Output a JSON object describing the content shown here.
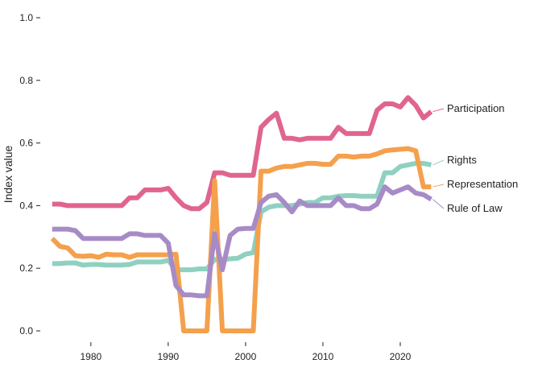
{
  "chart_data": {
    "type": "line",
    "title": "",
    "xlabel": "",
    "ylabel": "Index value",
    "xlim": [
      1974.5,
      2025
    ],
    "ylim": [
      0,
      1.0
    ],
    "x_ticks": [
      1980,
      1990,
      2000,
      2010,
      2020
    ],
    "x_tick_labels": [
      "1980",
      "1990",
      "2000",
      "2010",
      "2020"
    ],
    "y_ticks": [
      0,
      0.2,
      0.4,
      0.6,
      0.8,
      1.0
    ],
    "y_tick_labels": [
      "0.0",
      "0.2",
      "0.4",
      "0.6",
      "0.8",
      "1.0"
    ],
    "grid": false,
    "legend": "inline-right",
    "x": [
      1975,
      1976,
      1977,
      1978,
      1979,
      1980,
      1981,
      1982,
      1983,
      1984,
      1985,
      1986,
      1987,
      1988,
      1989,
      1990,
      1991,
      1992,
      1993,
      1994,
      1995,
      1996,
      1997,
      1998,
      1999,
      2000,
      2001,
      2002,
      2003,
      2004,
      2005,
      2006,
      2007,
      2008,
      2009,
      2010,
      2011,
      2012,
      2013,
      2014,
      2015,
      2016,
      2017,
      2018,
      2019,
      2020,
      2021,
      2022,
      2023,
      2024
    ],
    "series": [
      {
        "name": "Participation",
        "color": "#e0658c",
        "values": [
          0.405,
          0.405,
          0.4,
          0.4,
          0.4,
          0.4,
          0.4,
          0.4,
          0.4,
          0.4,
          0.425,
          0.425,
          0.45,
          0.45,
          0.45,
          0.455,
          0.425,
          0.4,
          0.39,
          0.39,
          0.41,
          0.505,
          0.505,
          0.497,
          0.497,
          0.497,
          0.497,
          0.65,
          0.675,
          0.695,
          0.615,
          0.615,
          0.61,
          0.615,
          0.615,
          0.615,
          0.615,
          0.65,
          0.63,
          0.63,
          0.63,
          0.63,
          0.705,
          0.725,
          0.725,
          0.715,
          0.745,
          0.72,
          0.68,
          0.7
        ]
      },
      {
        "name": "Rights",
        "color": "#8fd0c1",
        "values": [
          0.215,
          0.215,
          0.217,
          0.217,
          0.21,
          0.212,
          0.212,
          0.21,
          0.21,
          0.21,
          0.212,
          0.22,
          0.22,
          0.22,
          0.22,
          0.225,
          0.195,
          0.195,
          0.195,
          0.198,
          0.198,
          0.228,
          0.228,
          0.23,
          0.232,
          0.245,
          0.25,
          0.38,
          0.395,
          0.4,
          0.4,
          0.4,
          0.405,
          0.41,
          0.41,
          0.425,
          0.425,
          0.43,
          0.432,
          0.432,
          0.43,
          0.43,
          0.43,
          0.505,
          0.505,
          0.525,
          0.53,
          0.535,
          0.535,
          0.53
        ]
      },
      {
        "name": "Representation",
        "color": "#f4a04c",
        "values": [
          0.295,
          0.27,
          0.265,
          0.24,
          0.238,
          0.24,
          0.235,
          0.245,
          0.243,
          0.243,
          0.235,
          0.243,
          0.243,
          0.243,
          0.243,
          0.243,
          0.245,
          0.0,
          0.0,
          0.0,
          0.0,
          0.48,
          0.0,
          0.0,
          0.0,
          0.0,
          0.0,
          0.51,
          0.51,
          0.52,
          0.525,
          0.525,
          0.53,
          0.535,
          0.535,
          0.532,
          0.532,
          0.558,
          0.558,
          0.555,
          0.558,
          0.558,
          0.565,
          0.575,
          0.578,
          0.58,
          0.582,
          0.575,
          0.46,
          0.46
        ]
      },
      {
        "name": "Rule of Law",
        "color": "#a78bc7",
        "values": [
          0.325,
          0.325,
          0.325,
          0.32,
          0.295,
          0.295,
          0.295,
          0.295,
          0.295,
          0.295,
          0.31,
          0.31,
          0.305,
          0.305,
          0.305,
          0.28,
          0.145,
          0.115,
          0.115,
          0.112,
          0.112,
          0.31,
          0.195,
          0.305,
          0.325,
          0.327,
          0.327,
          0.41,
          0.43,
          0.435,
          0.41,
          0.38,
          0.415,
          0.4,
          0.4,
          0.4,
          0.4,
          0.425,
          0.4,
          0.4,
          0.39,
          0.39,
          0.405,
          0.46,
          0.44,
          0.45,
          0.46,
          0.44,
          0.435,
          0.42
        ]
      }
    ],
    "label_offsets_hint": "Participation, Rights, Representation, Rule of Law"
  }
}
